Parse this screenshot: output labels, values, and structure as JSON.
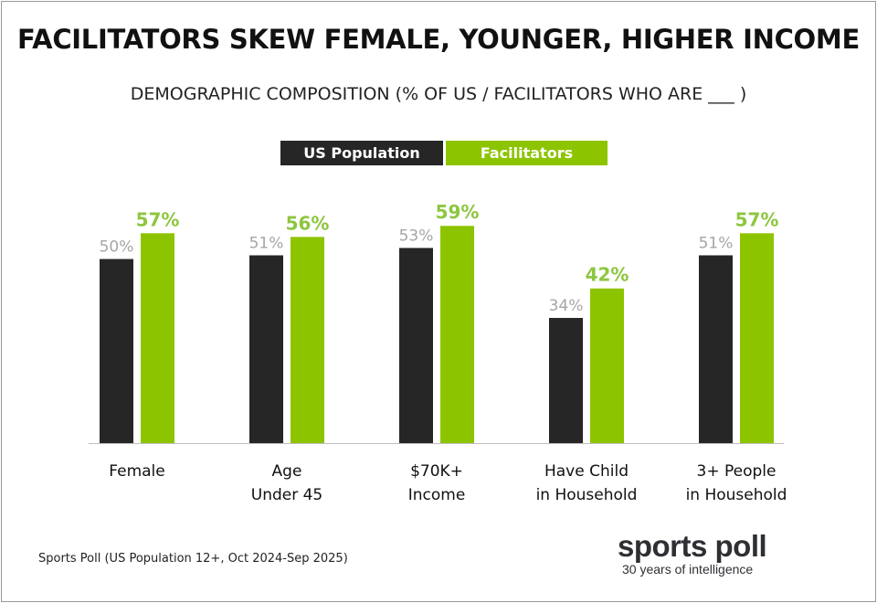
{
  "title": "FACILITATORS SKEW FEMALE, YOUNGER, HIGHER INCOME",
  "subtitle": "DEMOGRAPHIC COMPOSITION (% OF US / FACILITATORS WHO ARE ___ )",
  "source": "Sports Poll (US Population 12+, Oct 2024-Sep 2025)",
  "logo": {
    "name": "sports poll",
    "tagline": "30 years of intelligence"
  },
  "chart_data": {
    "type": "bar",
    "categories": [
      [
        "Female"
      ],
      [
        "Age",
        "Under 45"
      ],
      [
        "$70K+",
        "Income"
      ],
      [
        "Have Child",
        "in Household"
      ],
      [
        "3+ People",
        "in Household"
      ]
    ],
    "series": [
      {
        "name": "US Population",
        "color": "#262626",
        "label_color": "#a6a6a6",
        "values": [
          50,
          51,
          53,
          34,
          51
        ],
        "labels": [
          "50%",
          "51%",
          "53%",
          "34%",
          "51%"
        ]
      },
      {
        "name": "Facilitators",
        "color": "#8dc400",
        "label_color": "#8dc63f",
        "values": [
          57,
          56,
          59,
          42,
          57
        ],
        "labels": [
          "57%",
          "56%",
          "59%",
          "42%",
          "57%"
        ]
      }
    ],
    "ylim": [
      0,
      100
    ],
    "grid": false,
    "legend_placement": "top-center"
  }
}
